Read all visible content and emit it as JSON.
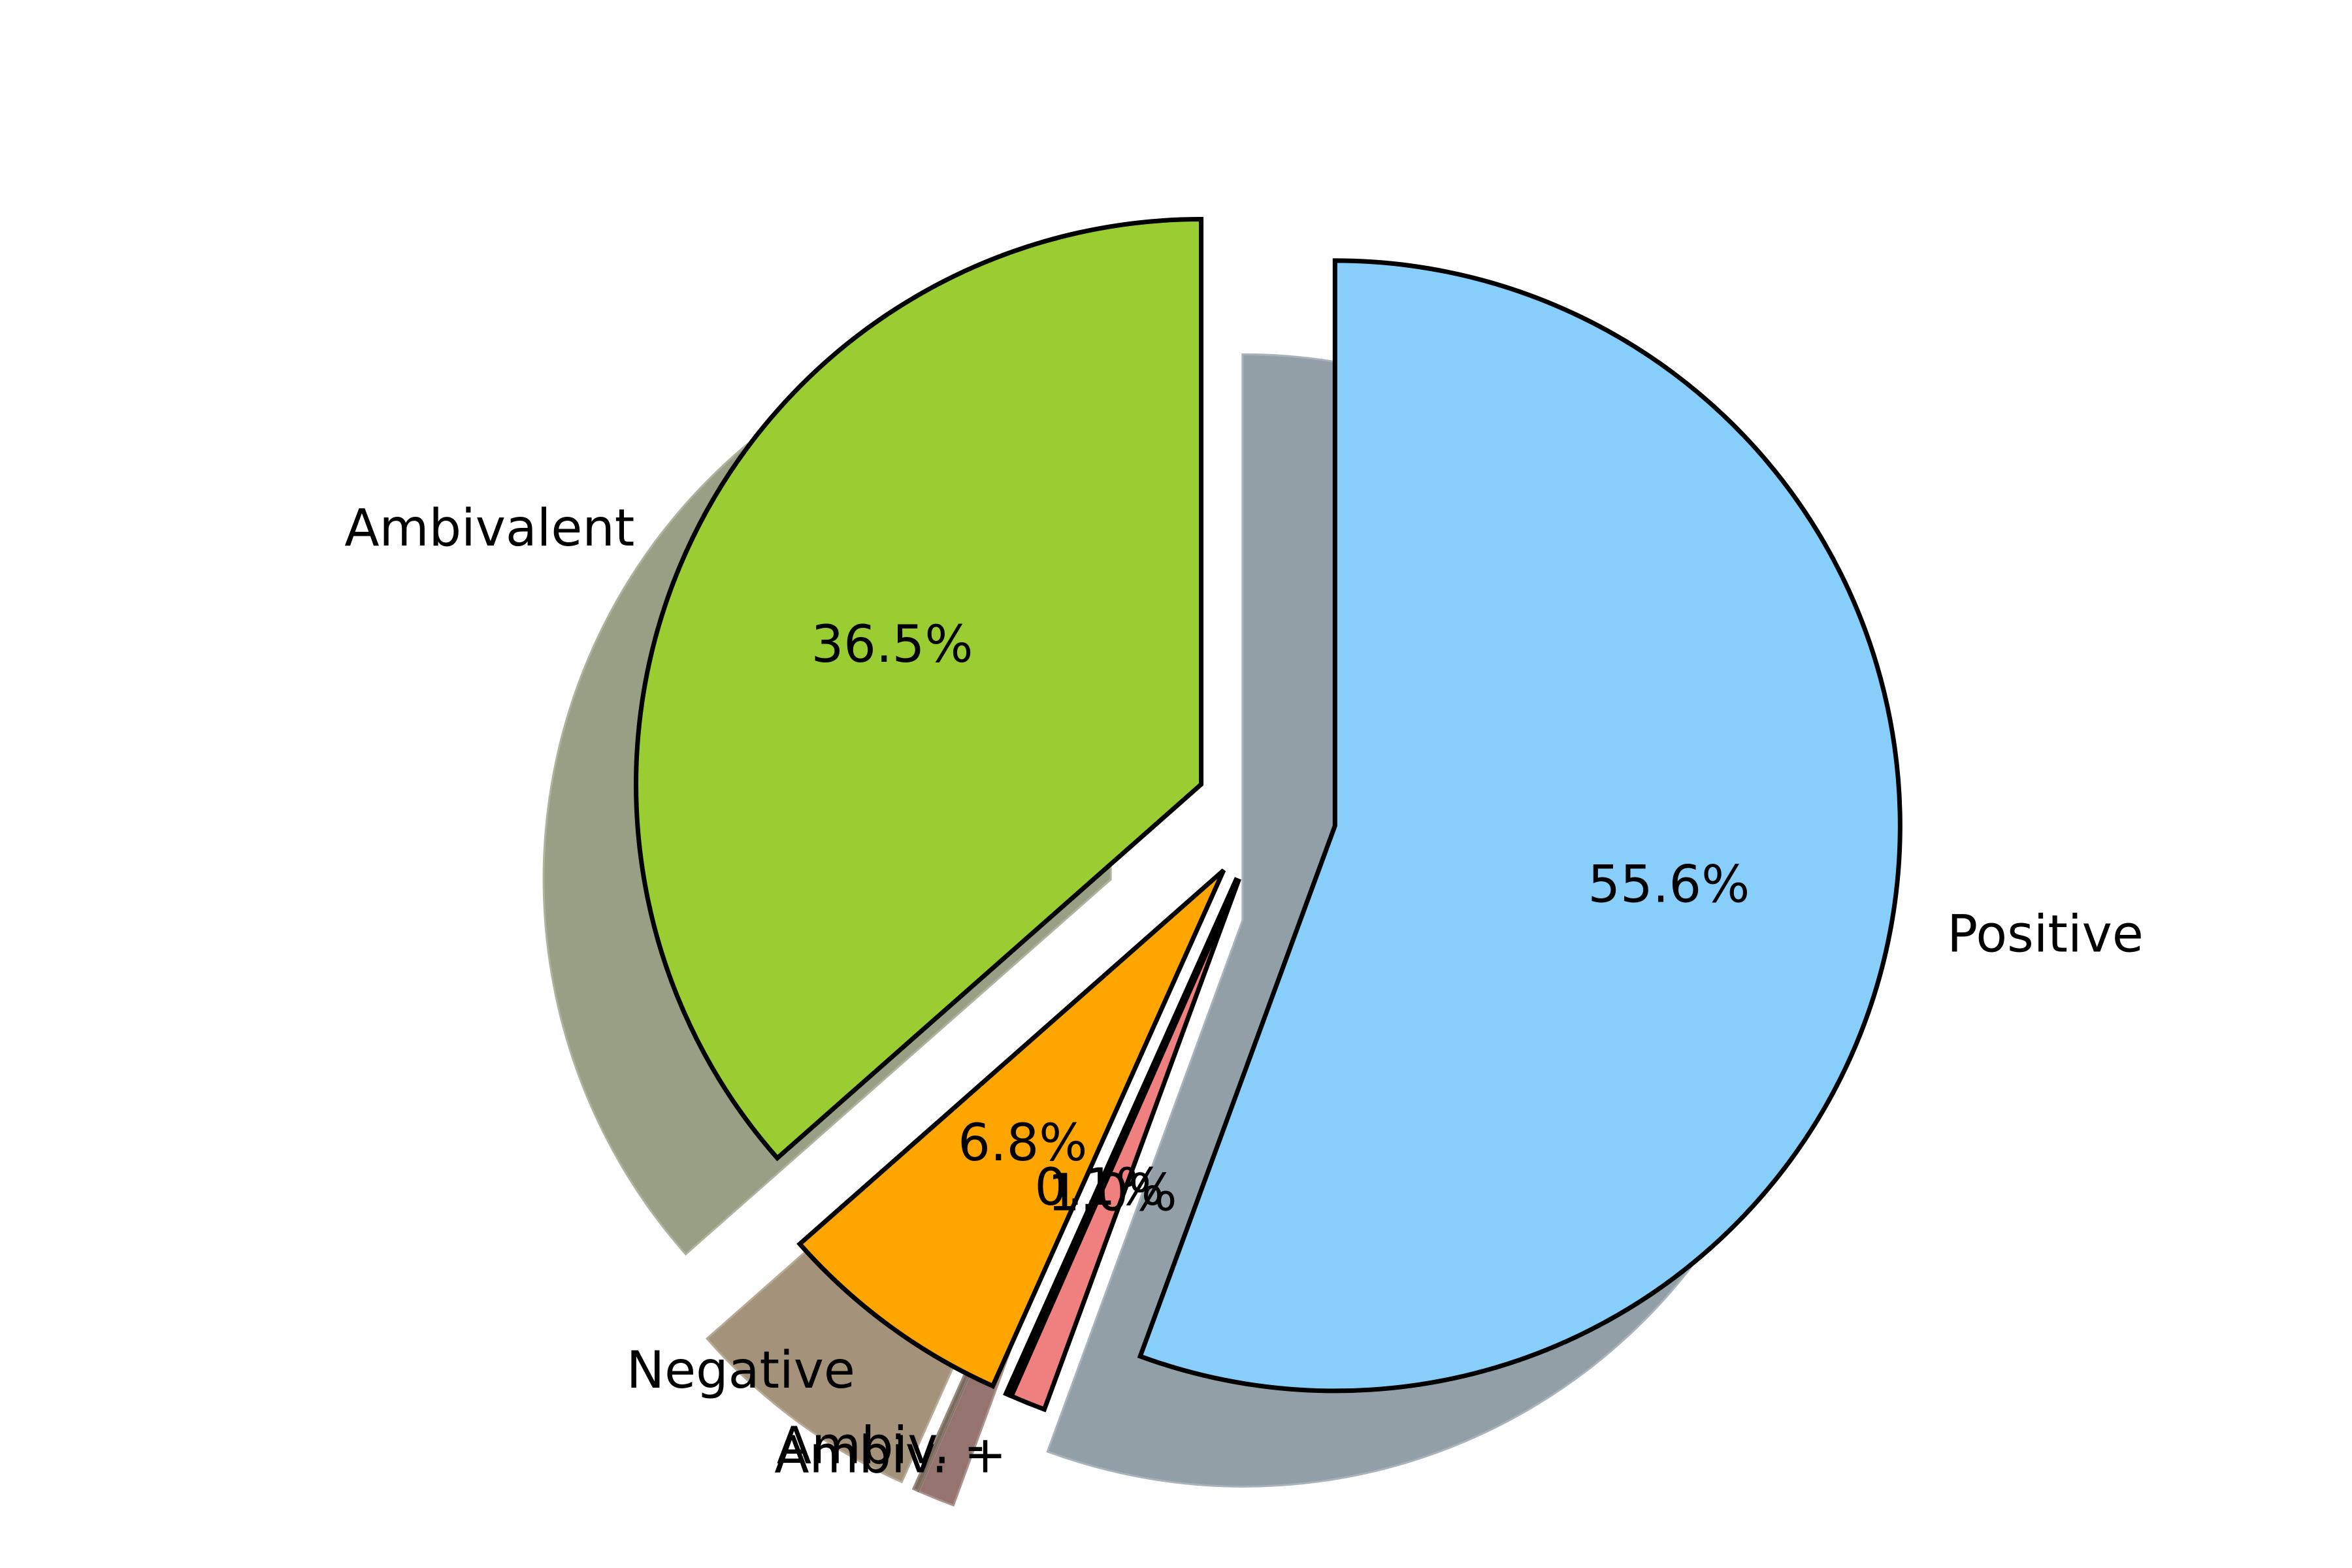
{
  "chart_data": {
    "type": "pie",
    "title": "",
    "start_angle_deg": 90,
    "direction": "clockwise",
    "shadow": true,
    "label_format": "{value}%",
    "slices": [
      {
        "label": "Positive",
        "value": 55.6,
        "pct_label": "55.6%",
        "color": "#87CEFA",
        "shadow_color": "#939FA7",
        "explode": true
      },
      {
        "label": "Ambiv. +",
        "value": 1.0,
        "pct_label": "1.0%",
        "color": "#F08080",
        "shadow_color": "#95746F",
        "explode": true
      },
      {
        "label": "Ambiv. -",
        "value": 0.1,
        "pct_label": "0.1%",
        "color": "#000000",
        "shadow_color": "#7A6A5C",
        "explode": true
      },
      {
        "label": "Negative",
        "value": 6.8,
        "pct_label": "6.8%",
        "color": "#FFA500",
        "shadow_color": "#A4937A",
        "explode": true
      },
      {
        "label": "Ambivalent",
        "value": 36.5,
        "pct_label": "36.5%",
        "color": "#9ACD32",
        "shadow_color": "#989F84",
        "explode": true
      }
    ],
    "edge_color": "#000000",
    "background": "#FFFFFF"
  }
}
